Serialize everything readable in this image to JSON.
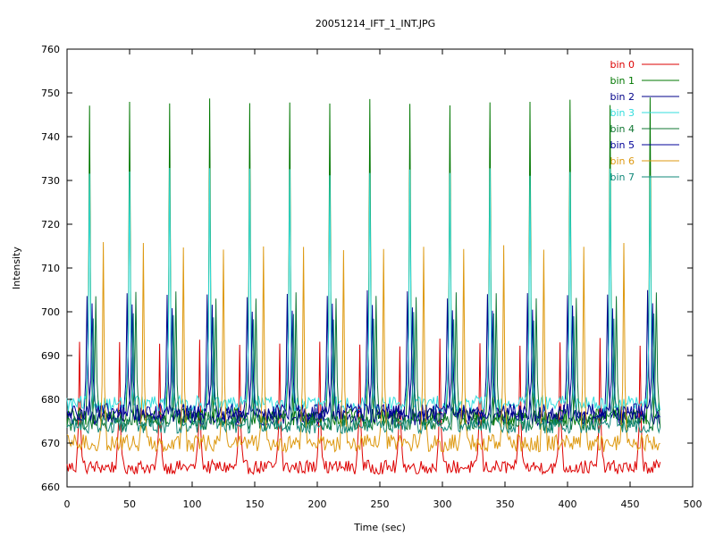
{
  "chart_data": {
    "type": "line",
    "title": "20051214_IFT_1_INT.JPG",
    "xlabel": "Time (sec)",
    "ylabel": "Intensity",
    "xlim": [
      0,
      500
    ],
    "ylim": [
      660,
      760
    ],
    "x_ticks": [
      0,
      50,
      100,
      150,
      200,
      250,
      300,
      350,
      400,
      450,
      500
    ],
    "y_ticks": [
      660,
      670,
      680,
      690,
      700,
      710,
      720,
      730,
      740,
      750,
      760
    ],
    "grid": false,
    "legend_position": "top-right",
    "sample_interval": 1,
    "x_max_data": 474,
    "series": [
      {
        "name": "bin 0",
        "color": "#dd0000",
        "baseline": 664.5,
        "noise": 1.6,
        "peak": 694,
        "peak_offset": -2,
        "period": 32,
        "first_peak": 12
      },
      {
        "name": "bin 1",
        "color": "#007700",
        "baseline": 676,
        "noise": 2.0,
        "peak": 749,
        "peak_offset": 0,
        "period": 32,
        "first_peak": 18
      },
      {
        "name": "bin 2",
        "color": "#000088",
        "baseline": 676,
        "noise": 2.0,
        "peak": 705,
        "peak_offset": -1,
        "period": 32,
        "first_peak": 17
      },
      {
        "name": "bin 3",
        "color": "#33dddd",
        "baseline": 679,
        "noise": 1.8,
        "peak": 733,
        "peak_offset": 0,
        "period": 32,
        "first_peak": 18
      },
      {
        "name": "bin 4",
        "color": "#117733",
        "baseline": 675,
        "noise": 2.2,
        "peak": 705,
        "peak_offset": 5,
        "period": 32,
        "first_peak": 18
      },
      {
        "name": "bin 5",
        "color": "#000099",
        "baseline": 677,
        "noise": 2.0,
        "peak": 702,
        "peak_offset": 2,
        "period": 32,
        "first_peak": 18
      },
      {
        "name": "bin 6",
        "color": "#dd9911",
        "baseline": 670,
        "noise": 2.0,
        "peak": 716,
        "peak_offset": 11,
        "period": 32,
        "first_peak": 18
      },
      {
        "name": "bin 7",
        "color": "#11887a",
        "baseline": 674,
        "noise": 1.8,
        "peak": 700,
        "peak_offset": 3,
        "period": 32,
        "first_peak": 18
      }
    ]
  }
}
